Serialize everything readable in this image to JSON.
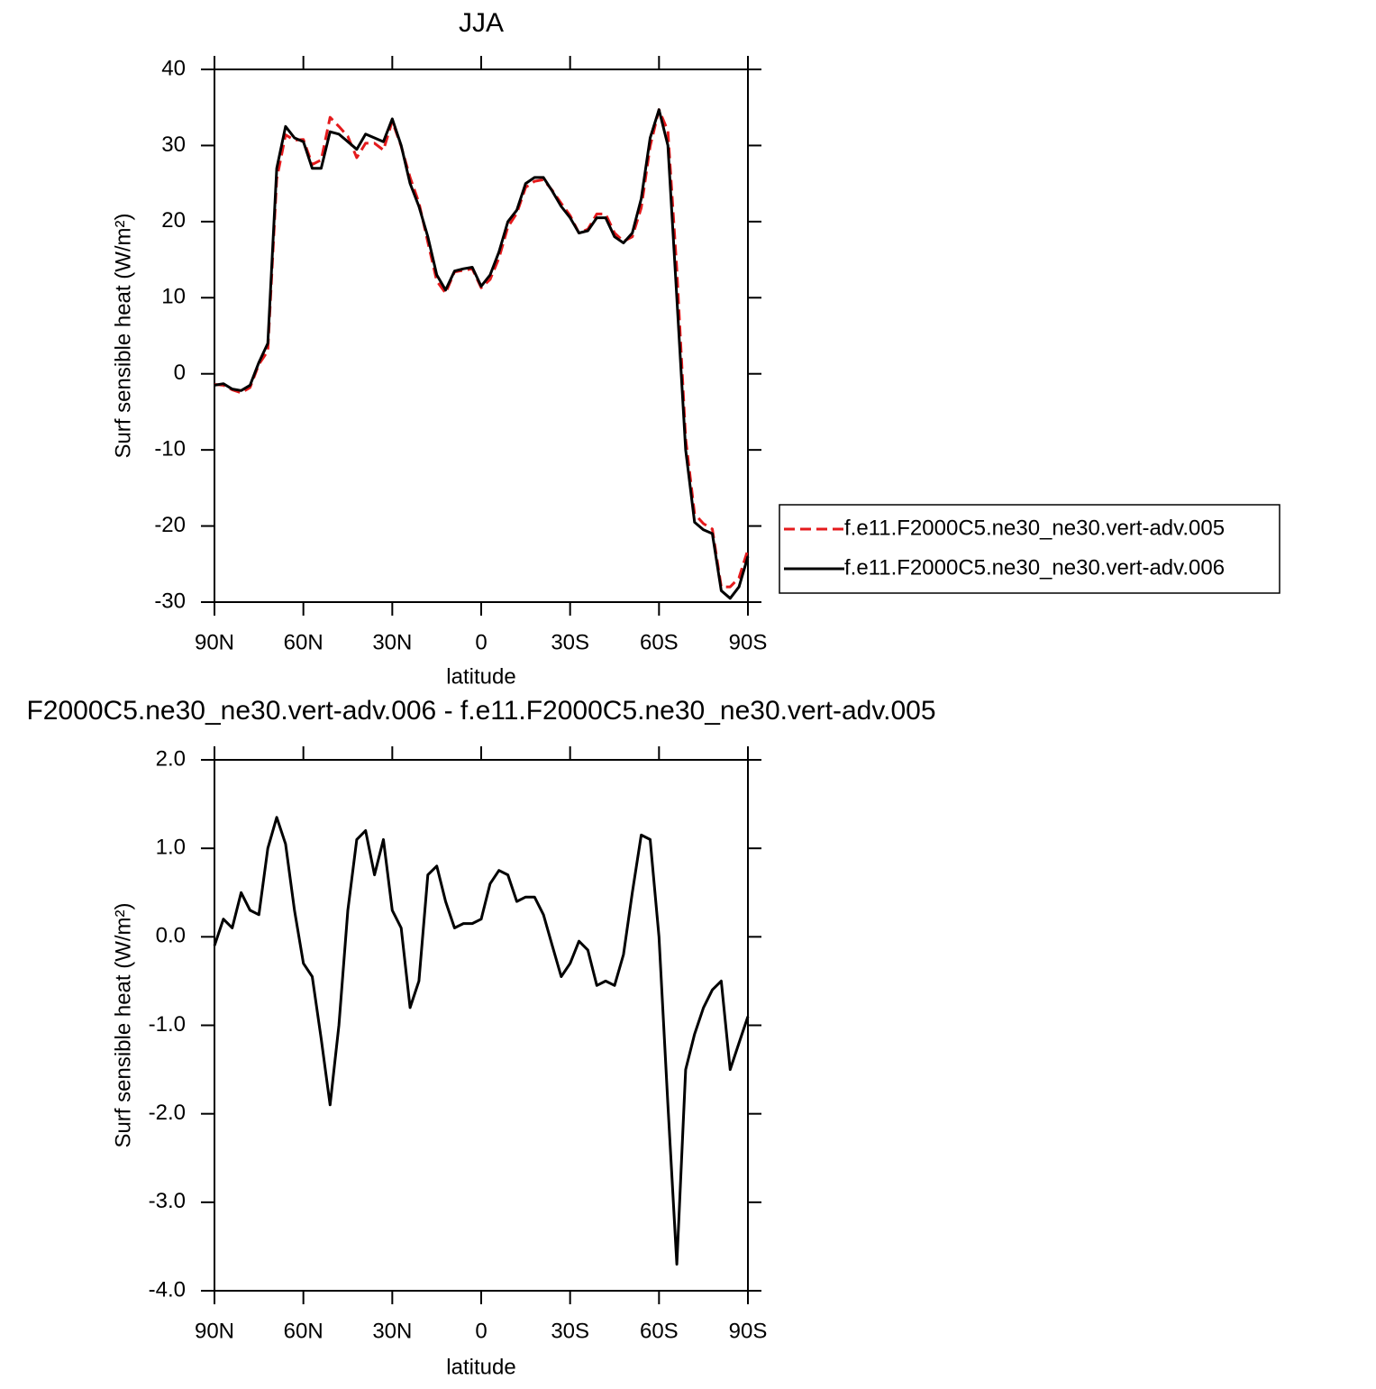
{
  "chart_data": [
    {
      "type": "line",
      "title": "JJA",
      "xlabel": "latitude",
      "ylabel": "Surf sensible heat (W/m²)",
      "x": [
        90,
        87,
        84,
        81,
        78,
        75,
        72,
        69,
        66,
        63,
        60,
        57,
        54,
        51,
        48,
        45,
        42,
        39,
        36,
        33,
        30,
        27,
        24,
        21,
        18,
        15,
        12,
        9,
        6,
        3,
        0,
        -3,
        -6,
        -9,
        -12,
        -15,
        -18,
        -21,
        -24,
        -27,
        -30,
        -33,
        -36,
        -39,
        -42,
        -45,
        -48,
        -51,
        -54,
        -57,
        -60,
        -63,
        -66,
        -69,
        -72,
        -75,
        -78,
        -81,
        -84,
        -87,
        -90
      ],
      "xlim": [
        90,
        -90
      ],
      "xticks": [
        {
          "value": 90,
          "label": "90N"
        },
        {
          "value": 60,
          "label": "60N"
        },
        {
          "value": 30,
          "label": "30N"
        },
        0,
        {
          "value": -30,
          "label": "30S"
        },
        {
          "value": -60,
          "label": "60S"
        },
        {
          "value": -90,
          "label": "90S"
        }
      ],
      "ylim": [
        -30,
        40
      ],
      "yticks": [
        -30,
        -20,
        -10,
        0,
        10,
        20,
        30,
        40
      ],
      "legend": "right",
      "series": [
        {
          "name": "f.e11.F2000C5.ne30_ne30.vert-adv.005",
          "color": "#e41a1c",
          "linestyle": "dashed",
          "values": [
            -1.4,
            -1.5,
            -2.1,
            -2.5,
            -1.8,
            1.25,
            3,
            25.6,
            31.4,
            30.7,
            30.8,
            27.5,
            28.1,
            33.7,
            32.5,
            31.2,
            28.4,
            30.3,
            30.3,
            29.4,
            33.2,
            29.9,
            25.8,
            22.5,
            17.3,
            12.2,
            10.6,
            13.4,
            13.6,
            13.8,
            11.3,
            12.4,
            15.2,
            19.3,
            21.1,
            24.5,
            25.3,
            25.5,
            24.1,
            22.4,
            20.8,
            18.5,
            19,
            21,
            21,
            18.5,
            17.4,
            18,
            21.8,
            29.9,
            34.7,
            31.9,
            13.7,
            -8.5,
            -18.4,
            -19.7,
            -20.4,
            -28,
            -28,
            -26.8,
            -23.1
          ]
        },
        {
          "name": "f.e11.F2000C5.ne30_ne30.vert-adv.006",
          "color": "#000000",
          "linestyle": "solid",
          "values": [
            -1.5,
            -1.3,
            -2,
            -2.2,
            -1.5,
            1.5,
            4,
            27,
            32.5,
            31,
            30.5,
            27,
            27,
            31.8,
            31.5,
            30.5,
            29.5,
            31.5,
            31,
            30.5,
            33.5,
            30,
            25,
            22,
            18,
            13,
            11,
            13.5,
            13.8,
            14,
            11.5,
            13,
            16,
            20,
            21.5,
            25,
            25.8,
            25.8,
            24,
            22,
            20.5,
            18.5,
            18.8,
            20.5,
            20.5,
            18,
            17.2,
            18.5,
            23,
            31,
            34.7,
            30,
            10,
            -10,
            -19.5,
            -20.5,
            -21,
            -28.5,
            -29.5,
            -28,
            -24
          ]
        }
      ]
    },
    {
      "type": "line",
      "title": "F2000C5.ne30_ne30.vert-adv.006 - f.e11.F2000C5.ne30_ne30.vert-adv.005",
      "xlabel": "latitude",
      "ylabel": "Surf sensible heat (W/m²)",
      "x": [
        90,
        87,
        84,
        81,
        78,
        75,
        72,
        69,
        66,
        63,
        60,
        57,
        54,
        51,
        48,
        45,
        42,
        39,
        36,
        33,
        30,
        27,
        24,
        21,
        18,
        15,
        12,
        9,
        6,
        3,
        0,
        -3,
        -6,
        -9,
        -12,
        -15,
        -18,
        -21,
        -24,
        -27,
        -30,
        -33,
        -36,
        -39,
        -42,
        -45,
        -48,
        -51,
        -54,
        -57,
        -60,
        -63,
        -66,
        -69,
        -72,
        -75,
        -78,
        -81,
        -84,
        -87,
        -90
      ],
      "xlim": [
        90,
        -90
      ],
      "xticks": [
        {
          "value": 90,
          "label": "90N"
        },
        {
          "value": 60,
          "label": "60N"
        },
        {
          "value": 30,
          "label": "30N"
        },
        0,
        {
          "value": -30,
          "label": "30S"
        },
        {
          "value": -60,
          "label": "60S"
        },
        {
          "value": -90,
          "label": "90S"
        }
      ],
      "ylim": [
        -4,
        2
      ],
      "yticks": [
        {
          "value": -4,
          "label": "-4.0"
        },
        {
          "value": -3,
          "label": "-3.0"
        },
        {
          "value": -2,
          "label": "-2.0"
        },
        {
          "value": -1,
          "label": "-1.0"
        },
        {
          "value": 0,
          "label": "0.0"
        },
        {
          "value": 1,
          "label": "1.0"
        },
        {
          "value": 2,
          "label": "2.0"
        }
      ],
      "series": [
        {
          "color": "#000000",
          "linestyle": "solid",
          "values": [
            -0.1,
            0.2,
            0.1,
            0.5,
            0.3,
            0.25,
            1.0,
            1.35,
            1.05,
            0.3,
            -0.3,
            -0.45,
            -1.15,
            -1.9,
            -1.0,
            0.3,
            1.1,
            1.2,
            0.7,
            1.1,
            0.3,
            0.1,
            -0.8,
            -0.5,
            0.7,
            0.8,
            0.4,
            0.1,
            0.15,
            0.15,
            0.2,
            0.6,
            0.75,
            0.7,
            0.4,
            0.45,
            0.45,
            0.25,
            -0.1,
            -0.45,
            -0.3,
            -0.05,
            -0.15,
            -0.55,
            -0.5,
            -0.55,
            -0.2,
            0.5,
            1.15,
            1.1,
            0.0,
            -1.9,
            -3.7,
            -1.5,
            -1.1,
            -0.8,
            -0.6,
            -0.5,
            -1.5,
            -1.2,
            -0.9
          ]
        }
      ]
    }
  ]
}
